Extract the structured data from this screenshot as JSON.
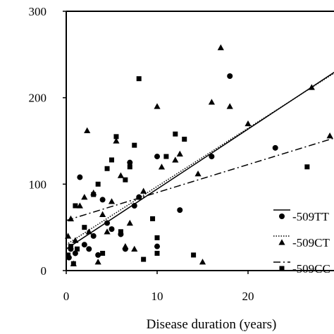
{
  "chart_data": {
    "type": "scatter",
    "title": "",
    "xlabel": "Disease duration (years)",
    "ylabel": "",
    "xlim": [
      0,
      30
    ],
    "ylim": [
      0,
      300
    ],
    "xticks": [
      0,
      10,
      20
    ],
    "yticks": [
      0,
      100,
      200,
      300
    ],
    "grid": false,
    "legend_position": "right",
    "series": [
      {
        "name": "-509TT",
        "marker": "circle",
        "line_style": "solid",
        "trend_line": [
          [
            0,
            25
          ],
          [
            30,
            233
          ]
        ],
        "points": [
          [
            0.3,
            15
          ],
          [
            0.5,
            25
          ],
          [
            1.0,
            20
          ],
          [
            1.5,
            108
          ],
          [
            2.0,
            30
          ],
          [
            2.5,
            25
          ],
          [
            3.0,
            40
          ],
          [
            3.5,
            18
          ],
          [
            4.0,
            82
          ],
          [
            4.5,
            55
          ],
          [
            5.0,
            48
          ],
          [
            6.0,
            42
          ],
          [
            6.5,
            25
          ],
          [
            7.0,
            125
          ],
          [
            7.5,
            75
          ],
          [
            8.0,
            85
          ],
          [
            10.0,
            132
          ],
          [
            10.0,
            28
          ],
          [
            12.5,
            70
          ],
          [
            16.0,
            132
          ],
          [
            18.0,
            225
          ],
          [
            23.0,
            142
          ]
        ]
      },
      {
        "name": "-509CT",
        "marker": "triangle",
        "line_style": "dotted",
        "trend_line": [
          [
            0,
            30
          ],
          [
            30,
            232
          ]
        ],
        "points": [
          [
            0.2,
            40
          ],
          [
            0.5,
            60
          ],
          [
            0.8,
            8
          ],
          [
            1.0,
            35
          ],
          [
            1.5,
            75
          ],
          [
            2.0,
            85
          ],
          [
            2.3,
            162
          ],
          [
            2.5,
            45
          ],
          [
            3.0,
            90
          ],
          [
            3.5,
            10
          ],
          [
            4.0,
            65
          ],
          [
            4.5,
            45
          ],
          [
            5.0,
            80
          ],
          [
            5.5,
            150
          ],
          [
            6.0,
            110
          ],
          [
            6.5,
            28
          ],
          [
            7.0,
            55
          ],
          [
            7.5,
            25
          ],
          [
            8.0,
            85
          ],
          [
            8.5,
            92
          ],
          [
            10.0,
            190
          ],
          [
            10.5,
            120
          ],
          [
            12.0,
            128
          ],
          [
            12.5,
            135
          ],
          [
            14.5,
            112
          ],
          [
            15.0,
            10
          ],
          [
            16.0,
            195
          ],
          [
            17.0,
            258
          ],
          [
            18.0,
            190
          ],
          [
            20.0,
            170
          ],
          [
            27.0,
            212
          ],
          [
            29.0,
            156
          ]
        ]
      },
      {
        "name": "-509CC",
        "marker": "square",
        "line_style": "dash-dot",
        "trend_line": [
          [
            0,
            58
          ],
          [
            30,
            155
          ]
        ],
        "points": [
          [
            0.2,
            18
          ],
          [
            0.5,
            28
          ],
          [
            0.8,
            8
          ],
          [
            1.0,
            75
          ],
          [
            1.2,
            25
          ],
          [
            2.0,
            50
          ],
          [
            3.0,
            88
          ],
          [
            3.5,
            100
          ],
          [
            4.0,
            20
          ],
          [
            4.5,
            118
          ],
          [
            5.0,
            128
          ],
          [
            5.5,
            155
          ],
          [
            6.0,
            45
          ],
          [
            6.5,
            105
          ],
          [
            7.0,
            120
          ],
          [
            7.5,
            145
          ],
          [
            8.0,
            222
          ],
          [
            8.5,
            13
          ],
          [
            9.5,
            60
          ],
          [
            10.0,
            38
          ],
          [
            10.0,
            20
          ],
          [
            11.0,
            132
          ],
          [
            12.0,
            158
          ],
          [
            13.0,
            152
          ],
          [
            14.0,
            18
          ],
          [
            26.5,
            120
          ]
        ]
      }
    ]
  }
}
